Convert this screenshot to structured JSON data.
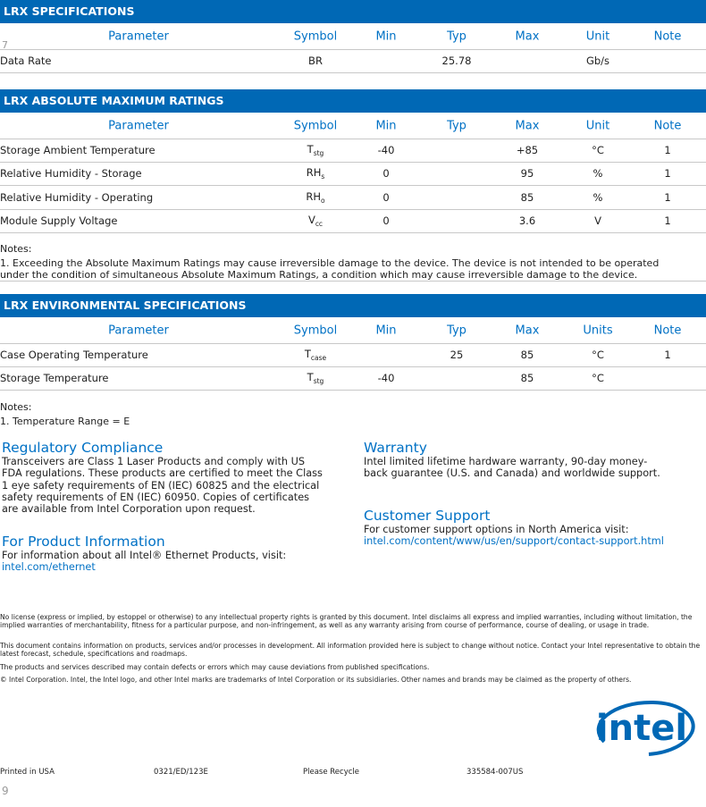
{
  "page_marks": [
    "7",
    "9"
  ],
  "tables": [
    {
      "title": "LRX SPECIFICATIONS",
      "header": [
        "Parameter",
        "Symbol",
        "Min",
        "Typ",
        "Max",
        "Unit",
        "Note"
      ],
      "rows": [
        {
          "parameter": "Data Rate",
          "symbol": {
            "base": "BR"
          },
          "typ": "25.78",
          "unit": "Gb/s"
        }
      ]
    },
    {
      "title": "LRX ABSOLUTE MAXIMUM RATINGS",
      "header": [
        "Parameter",
        "Symbol",
        "Min",
        "Typ",
        "Max",
        "Unit",
        "Note"
      ],
      "rows": [
        {
          "parameter": "Storage Ambient Temperature",
          "symbol": {
            "base": "T",
            "sub": "stg"
          },
          "min": "-40",
          "max": "+85",
          "unit": "°C",
          "note": "1"
        },
        {
          "parameter": "Relative Humidity - Storage",
          "symbol": {
            "base": "RH",
            "sub": "s"
          },
          "min": "0",
          "max": "95",
          "unit": "%",
          "note": "1"
        },
        {
          "parameter": "Relative Humidity - Operating",
          "symbol": {
            "base": "RH",
            "sub": "o"
          },
          "min": "0",
          "max": "85",
          "unit": "%",
          "note": "1"
        },
        {
          "parameter": "Module Supply Voltage",
          "symbol": {
            "base": "V",
            "sub": "cc"
          },
          "min": "0",
          "max": "3.6",
          "unit": "V",
          "note": "1"
        }
      ],
      "notes": [
        "Notes:",
        "1. Exceeding the Absolute Maximum Ratings may cause irreversible damage to the device. The device is not intended to be operated under the condition of simultaneous Absolute Maximum Ratings, a condition which may cause irreversible damage to the device."
      ]
    },
    {
      "title": "LRX ENVIRONMENTAL SPECIFICATIONS",
      "header": [
        "Parameter",
        "Symbol",
        "Min",
        "Typ",
        "Max",
        "Units",
        "Note"
      ],
      "rows": [
        {
          "parameter": "Case Operating Temperature",
          "symbol": {
            "base": "T",
            "sub": "case"
          },
          "typ": "25",
          "max": "85",
          "unit": "°C",
          "note": "1"
        },
        {
          "parameter": "Storage Temperature",
          "symbol": {
            "base": "T",
            "sub": "stg"
          },
          "min": "-40",
          "max": "85",
          "unit": "°C"
        }
      ],
      "notes": [
        "Notes:",
        "1. Temperature Range = E"
      ]
    }
  ],
  "sections": [
    {
      "heading": "Regulatory Compliance",
      "text": "Transceivers are Class 1 Laser Products and comply with US FDA regulations. These products are certified to meet the Class 1 eye safety requirements of EN (IEC) 60825 and the electrical safety requirements of EN (IEC) 60950. Copies of certificates are available from Intel Corporation upon request."
    },
    {
      "heading": "For Product Information",
      "text": "For information about all Intel® Ethernet Products, visit:",
      "link": "intel.com/ethernet"
    },
    {
      "heading": "Warranty",
      "text": "Intel limited lifetime hardware warranty, 90-day money-back guarantee (U.S. and Canada) and worldwide support."
    },
    {
      "heading": "Customer Support",
      "text": "For customer support options in North America visit:",
      "link": "intel.com/content/www/us/en/support/contact-support.html"
    }
  ],
  "legal": [
    "No license (express or implied, by estoppel or otherwise) to any intellectual property rights is granted by this document. Intel disclaims all express and implied warranties, including without limitation, the implied warranties of merchantability, fitness for a particular purpose, and non-infringement, as well as any warranty arising from course of performance, course of dealing, or usage in trade.",
    "This document contains information on products, services and/or processes in development. All information provided here is subject to change without notice. Contact your Intel representative to obtain the latest forecast, schedule, specifications and roadmaps.",
    "The products and services described may contain defects or errors which may cause deviations from published specifications.",
    "© Intel Corporation. Intel, the Intel logo, and other Intel marks are trademarks of Intel Corporation or its subsidiaries. Other names and brands may be claimed as the property of others."
  ],
  "footer": [
    "Printed in USA",
    "0321/ED/123E",
    "Please Recycle",
    "335584-007US"
  ],
  "logo": "intel"
}
